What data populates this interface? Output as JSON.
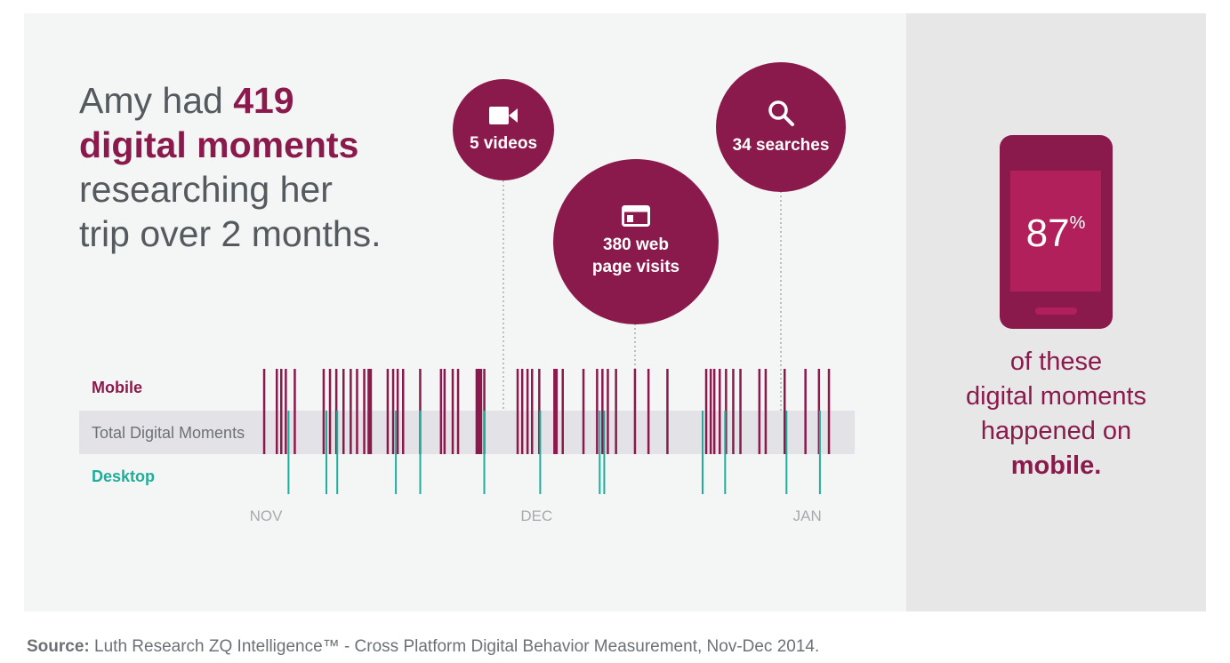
{
  "headline": {
    "prefix": "Amy had ",
    "count": "419",
    "emphasis": "digital moments",
    "line3": "researching her",
    "line4": "trip over 2 months."
  },
  "rows": {
    "mobile": "Mobile",
    "total": "Total Digital Moments",
    "desktop": "Desktop"
  },
  "bubbles": {
    "videos": "5 videos",
    "web_line1": "380 web",
    "web_line2": "page visits",
    "searches": "34 searches"
  },
  "bubble_icons": [
    "video-camera-icon",
    "browser-window-icon",
    "magnifier-icon"
  ],
  "phone": {
    "value": "87",
    "unit": "%"
  },
  "side_text": {
    "line1": "of these",
    "line2": "digital moments",
    "line3": "happened on",
    "strong": "mobile."
  },
  "source": {
    "label": "Source:",
    "text": "Luth Research ZQ Intelligence™ - Cross Platform Digital Behavior Measurement, Nov-Dec 2014."
  },
  "colors": {
    "mobile": "#8b1a4c",
    "desktop": "#1fae9a",
    "accent_light": "#b2205c"
  },
  "chart_data": {
    "type": "bar",
    "x_ticks": [
      "NOV",
      "DEC",
      "JAN"
    ],
    "x_tick_days": [
      1,
      31,
      61
    ],
    "xlim": [
      0.8,
      63.4
    ],
    "series": [
      {
        "name": "Mobile",
        "days": [
          0.8,
          2.2,
          2.7,
          3.2,
          4.2,
          7.4,
          8.1,
          8.8,
          9.6,
          10.4,
          11.1,
          11.9,
          12.5,
          14.5,
          15.1,
          15.6,
          16.2,
          18.1,
          20.4,
          20.8,
          21.7,
          22.3,
          24.6,
          25.2,
          28.9,
          29.4,
          30.0,
          30.5,
          31.3,
          33.1,
          33.9,
          36.2,
          37.7,
          38.3,
          38.9,
          39.8,
          41.9,
          43.4,
          45.5,
          49.8,
          50.3,
          50.7,
          51.3,
          52.0,
          52.8,
          53.6,
          55.7,
          56.4,
          58.5,
          60.8,
          62.3,
          63.4
        ],
        "widths": [
          1,
          1,
          1,
          1,
          1,
          1,
          1,
          1,
          1,
          1,
          1,
          1,
          2,
          1,
          1,
          1,
          1,
          1,
          1,
          1,
          1,
          1,
          3,
          1,
          1,
          1,
          1,
          1,
          1,
          2,
          1,
          1,
          1,
          1,
          1,
          1,
          1,
          1,
          1,
          1,
          1,
          1,
          1,
          1,
          1,
          1,
          1,
          1,
          1,
          1,
          1,
          1
        ]
      },
      {
        "name": "Desktop",
        "days": [
          3.5,
          7.7,
          8.9,
          15.4,
          18.1,
          25.2,
          31.4,
          38.0,
          38.5,
          49.4,
          51.9,
          58.7,
          62.4
        ]
      }
    ]
  }
}
